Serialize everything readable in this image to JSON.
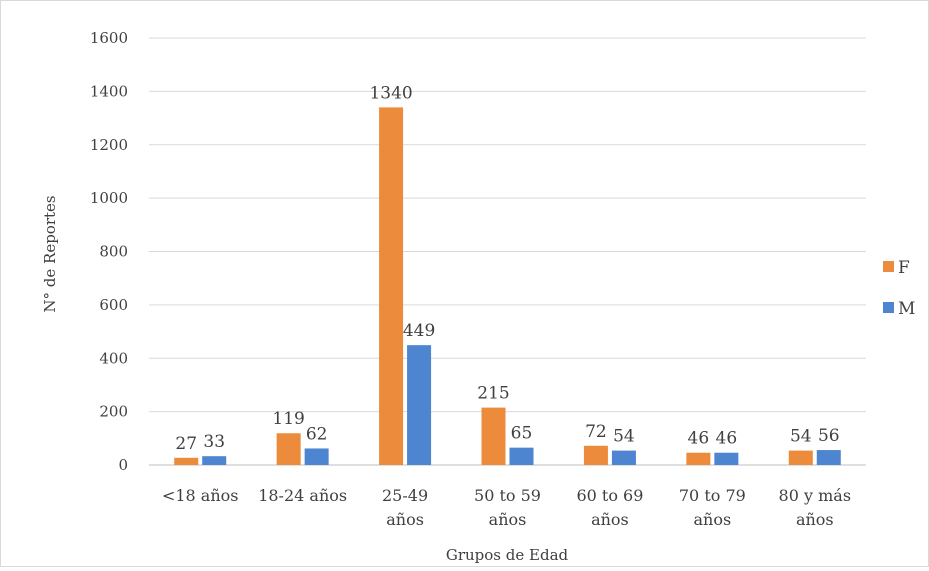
{
  "chart_data": {
    "type": "bar",
    "title": "",
    "xlabel": "Grupos de Edad",
    "ylabel": "N° de Reportes",
    "ylim": [
      0,
      1600
    ],
    "yticks": [
      0,
      200,
      400,
      600,
      800,
      1000,
      1200,
      1400,
      1600
    ],
    "yticks_labels": [
      "0",
      "200",
      "400",
      "600",
      "800",
      "1000",
      "1200",
      "1400",
      "1600"
    ],
    "grid": true,
    "legend_position": "right",
    "categories": [
      [
        "<18 años"
      ],
      [
        "18-24 años"
      ],
      [
        "25-49",
        "años"
      ],
      [
        "50 to 59",
        "años"
      ],
      [
        "60 to 69",
        "años"
      ],
      [
        "70 to 79",
        "años"
      ],
      [
        "80 y más",
        "años"
      ]
    ],
    "series": [
      {
        "name": "F",
        "color": "#ED8B3C",
        "values": [
          27,
          119,
          1340,
          215,
          72,
          46,
          54
        ],
        "labels": [
          "27",
          "119",
          "1340",
          "215",
          "72",
          "46",
          "54"
        ]
      },
      {
        "name": "M",
        "color": "#4E85D0",
        "values": [
          33,
          62,
          449,
          65,
          54,
          46,
          56
        ],
        "labels": [
          "33",
          "62",
          "449",
          "65",
          "54",
          "46",
          "56"
        ]
      }
    ]
  }
}
